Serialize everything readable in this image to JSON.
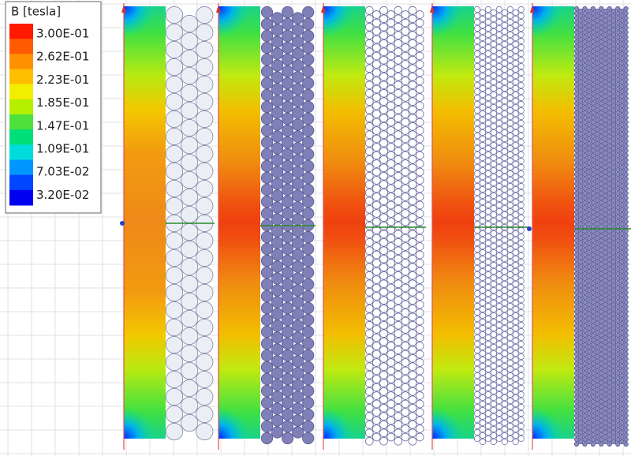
{
  "legend": {
    "title": "B [tesla]",
    "labels": [
      "3.00E-01",
      "2.62E-01",
      "2.23E-01",
      "1.85E-01",
      "1.47E-01",
      "1.09E-01",
      "7.03E-02",
      "3.20E-02"
    ],
    "colors": [
      "#ff1a00",
      "#ff5a00",
      "#ff9000",
      "#ffbe00",
      "#f2ee00",
      "#b4f000",
      "#4ee03c",
      "#00e07a",
      "#00dcdc",
      "#0096ff",
      "#0046ff",
      "#0000f0"
    ]
  }
}
